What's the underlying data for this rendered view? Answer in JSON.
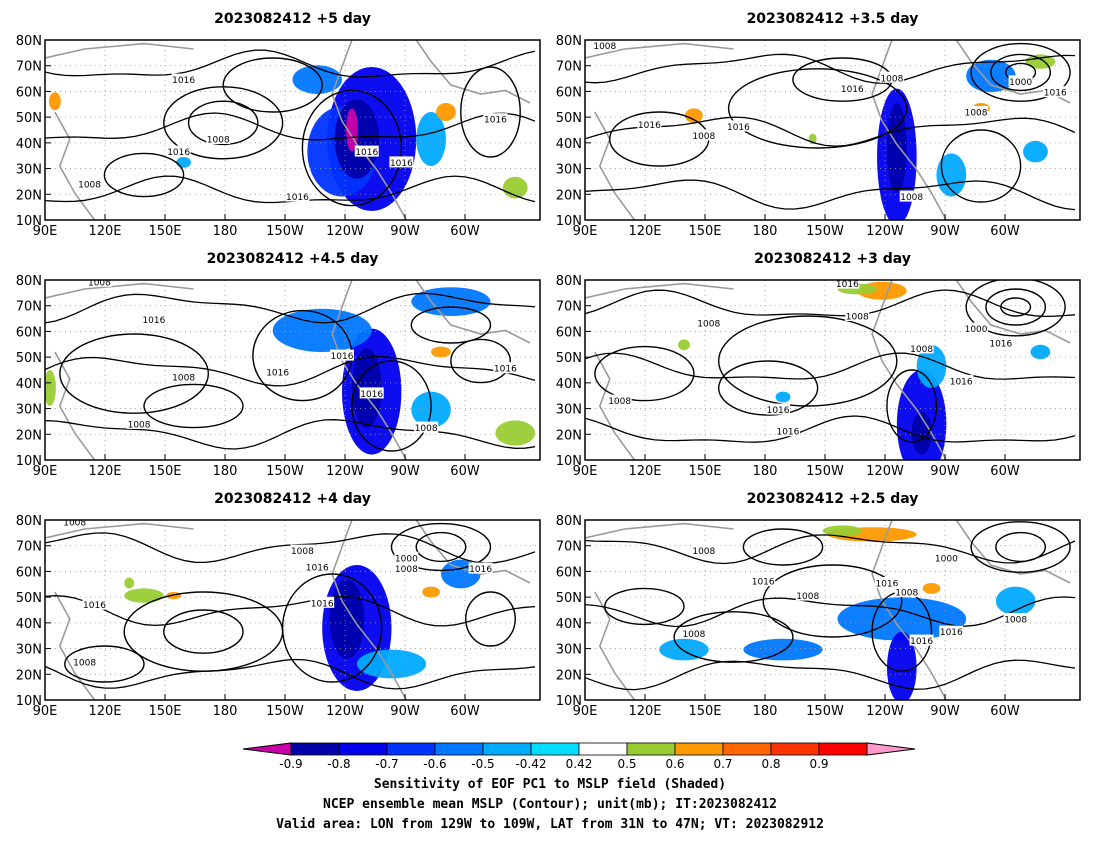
{
  "panels": [
    {
      "title": "2023082412 +5 day",
      "contour_labels": [
        "1016",
        "1008",
        "1016",
        "1016",
        "1016",
        "1008",
        "1016",
        "1016"
      ]
    },
    {
      "title": "2023082412 +3.5 day",
      "contour_labels": [
        "1008",
        "1008",
        "1000",
        "1016",
        "1016",
        "1016",
        "1008",
        "1008",
        "1016",
        "1008"
      ]
    },
    {
      "title": "2023082412 +4.5 day",
      "contour_labels": [
        "1008",
        "1016",
        "1016",
        "1008",
        "1016",
        "1016",
        "1016",
        "1008",
        "1008"
      ]
    },
    {
      "title": "2023082412 +3 day",
      "contour_labels": [
        "1016",
        "1008",
        "1008",
        "1000",
        "1016",
        "1008",
        "1016",
        "1008",
        "1016",
        "1016"
      ]
    },
    {
      "title": "2023082412 +4 day",
      "contour_labels": [
        "1008",
        "1008",
        "1016",
        "1016",
        "1000",
        "1008",
        "1016",
        "1008",
        "1016"
      ]
    },
    {
      "title": "2023082412 +2.5 day",
      "contour_labels": [
        "1008",
        "1016",
        "1016",
        "1000",
        "1008",
        "1008",
        "1016",
        "1008",
        "1016",
        "1008"
      ]
    }
  ],
  "axes": {
    "lat_ticks": [
      "80N",
      "70N",
      "60N",
      "50N",
      "40N",
      "30N",
      "20N",
      "10N"
    ],
    "lon_ticks": [
      "90E",
      "120E",
      "150E",
      "180",
      "150W",
      "120W",
      "90W",
      "60W"
    ]
  },
  "colorbar": {
    "ticks": [
      "-0.9",
      "-0.8",
      "-0.7",
      "-0.6",
      "-0.5",
      "-0.42",
      "0.42",
      "0.5",
      "0.6",
      "0.7",
      "0.8",
      "0.9"
    ],
    "colors": [
      "#cc00aa",
      "#0000aa",
      "#0000ee",
      "#0033ff",
      "#0077ff",
      "#00aaff",
      "#00ddff",
      "#ffffff",
      "#99cc33",
      "#ff9900",
      "#ff6600",
      "#ff3300",
      "#ff0000",
      "#ff99cc"
    ]
  },
  "caption": {
    "line1": "Sensitivity of EOF PC1 to MSLP field (Shaded)",
    "line2": "NCEP ensemble mean MSLP (Contour); unit(mb); IT:2023082412",
    "line3": "Valid area: LON from 129W to 109W, LAT from 31N to 47N; VT: 2023082912"
  }
}
